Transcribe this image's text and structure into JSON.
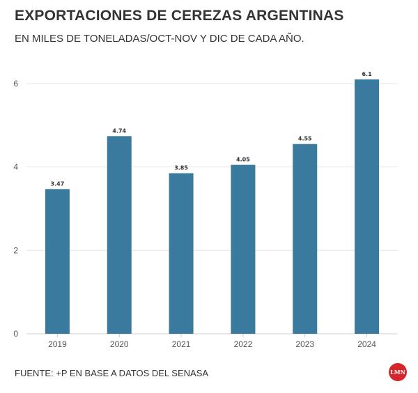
{
  "header": {
    "title": "EXPORTACIONES DE CEREZAS ARGENTINAS",
    "subtitle": "EN MILES DE TONELADAS/OCT-NOV Y DIC DE CADA AÑO."
  },
  "footer": {
    "source": "FUENTE: +P EN BASE A DATOS DEL SENASA",
    "logo_text": "LMN"
  },
  "colors": {
    "bar": "#3a7a9f",
    "grid": "#e6e6e6",
    "axis": "#cccccc",
    "logo_bg": "#d7262b"
  },
  "chart_data": {
    "type": "bar",
    "categories": [
      "2019",
      "2020",
      "2021",
      "2022",
      "2023",
      "2024"
    ],
    "values": [
      3.47,
      4.74,
      3.85,
      4.05,
      4.55,
      6.1
    ],
    "value_labels": [
      "3.47",
      "4.74",
      "3.85",
      "4.05",
      "4.55",
      "6.1"
    ],
    "title": "EXPORTACIONES DE CEREZAS ARGENTINAS",
    "subtitle": "EN MILES DE TONELADAS/OCT-NOV Y DIC DE CADA AÑO.",
    "xlabel": "",
    "ylabel": "",
    "ylim": [
      0,
      6.5
    ],
    "yticks": [
      0,
      2,
      4,
      6
    ],
    "grid": true,
    "legend": "none"
  }
}
